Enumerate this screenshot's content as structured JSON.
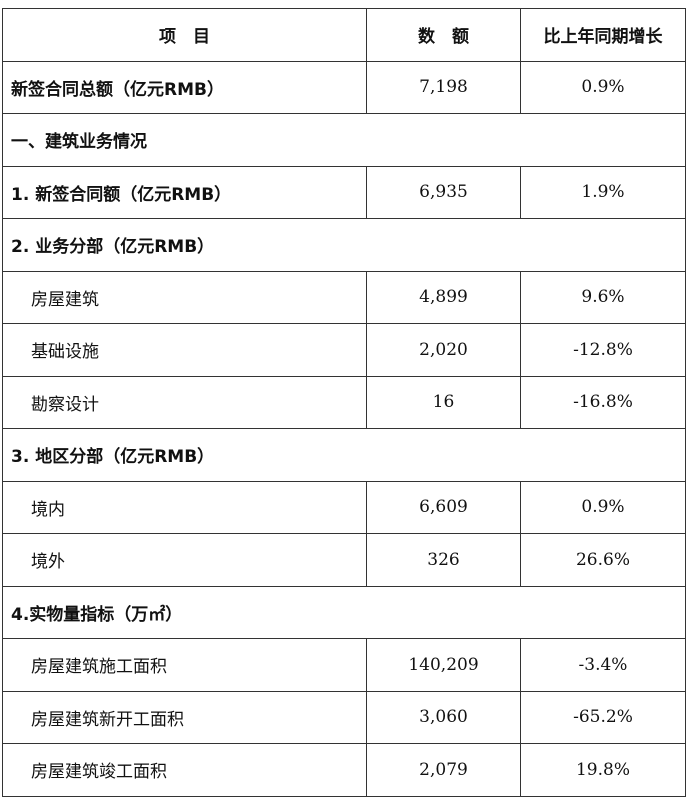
{
  "header": {
    "item": "项　目",
    "amount": "数　额",
    "growth": "比上年同期增长"
  },
  "rows": [
    {
      "type": "data",
      "level": "top",
      "label": "新签合同总额（亿元RMB）",
      "amount": "7,198",
      "growth": "0.9%"
    },
    {
      "type": "section",
      "label": "一、建筑业务情况"
    },
    {
      "type": "data",
      "level": "top",
      "label": "1. 新签合同额（亿元RMB）",
      "amount": "6,935",
      "growth": "1.9%"
    },
    {
      "type": "section",
      "label": "2. 业务分部（亿元RMB）"
    },
    {
      "type": "data",
      "level": "sub",
      "label": "房屋建筑",
      "amount": "4,899",
      "growth": "9.6%"
    },
    {
      "type": "data",
      "level": "sub",
      "label": "基础设施",
      "amount": "2,020",
      "growth": "-12.8%"
    },
    {
      "type": "data",
      "level": "sub",
      "label": "勘察设计",
      "amount": "16",
      "growth": "-16.8%"
    },
    {
      "type": "section",
      "label": "3. 地区分部（亿元RMB）"
    },
    {
      "type": "data",
      "level": "sub",
      "label": "境内",
      "amount": "6,609",
      "growth": "0.9%"
    },
    {
      "type": "data",
      "level": "sub",
      "label": "境外",
      "amount": "326",
      "growth": "26.6%"
    },
    {
      "type": "section",
      "label": "4.实物量指标（万㎡）"
    },
    {
      "type": "data",
      "level": "sub",
      "label": "房屋建筑施工面积",
      "amount": "140,209",
      "growth": "-3.4%"
    },
    {
      "type": "data",
      "level": "sub",
      "label": "房屋建筑新开工面积",
      "amount": "3,060",
      "growth": "-65.2%"
    },
    {
      "type": "data",
      "level": "sub",
      "label": "房屋建筑竣工面积",
      "amount": "2,079",
      "growth": "19.8%"
    }
  ]
}
